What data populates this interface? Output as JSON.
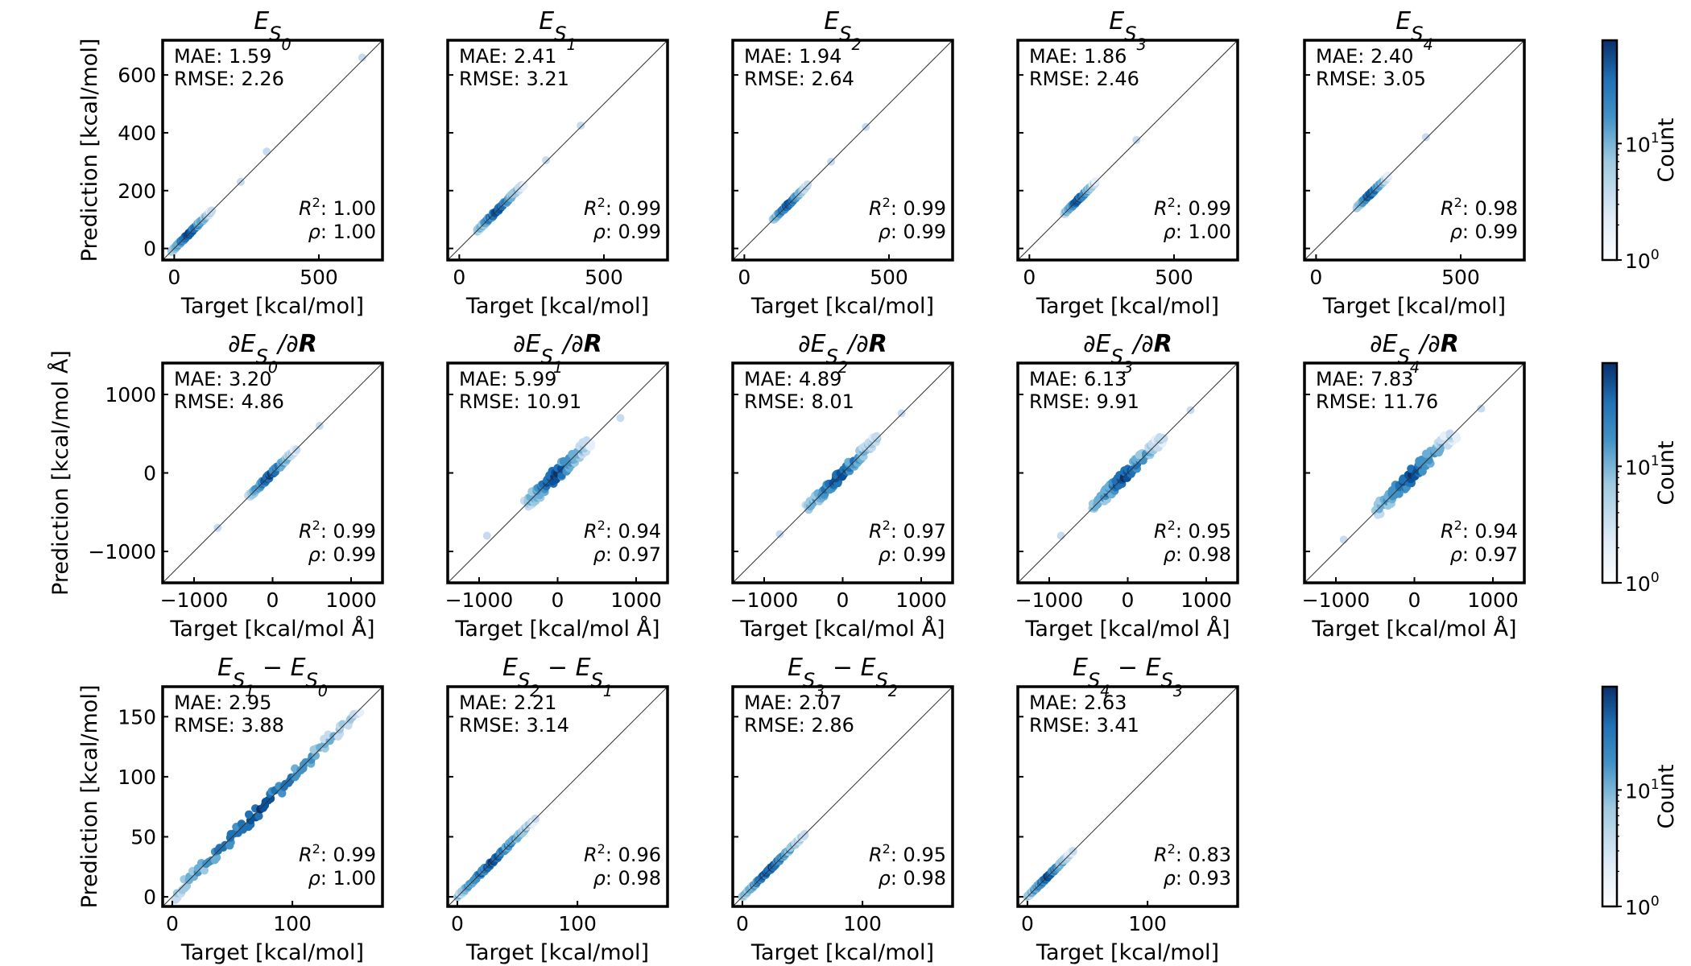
{
  "figure": {
    "colorbar": {
      "label": "Count",
      "scale": "log",
      "ticks": [
        {
          "base": "10",
          "exp": "0"
        },
        {
          "base": "10",
          "exp": "1"
        }
      ],
      "colors": [
        "#ffffff",
        "#deebf7",
        "#9ecae1",
        "#4292c6",
        "#2171b5",
        "#08306b"
      ]
    },
    "hex_color_low": "#deebf7",
    "hex_color_high": "#08306b"
  },
  "chart_data": [
    {
      "type": "hexbin",
      "title_html": "E<sub>S<sub>0</sub></sub>",
      "xlabel": "Target [kcal/mol]",
      "ylabel": "Prediction [kcal/mol]",
      "xlim": [
        -40,
        720
      ],
      "ylim": [
        -40,
        720
      ],
      "xticks": [
        "0",
        "500"
      ],
      "yticks": [
        "0",
        "200",
        "400",
        "600"
      ],
      "mae": "1.59",
      "rmse": "2.26",
      "r2": "1.00",
      "rho": "1.00",
      "range": [
        -10,
        130
      ],
      "spread": 0.04,
      "outliers": [
        [
          230,
          230
        ],
        [
          320,
          335
        ],
        [
          650,
          660
        ]
      ]
    },
    {
      "type": "hexbin",
      "title_html": "E<sub>S<sub>1</sub></sub>",
      "xlabel": "Target [kcal/mol]",
      "ylabel": "",
      "xlim": [
        -40,
        720
      ],
      "ylim": [
        -40,
        720
      ],
      "xticks": [
        "0",
        "500"
      ],
      "yticks": [
        "0",
        "200",
        "400",
        "600"
      ],
      "mae": "2.41",
      "rmse": "3.21",
      "r2": "0.99",
      "rho": "0.99",
      "range": [
        60,
        220
      ],
      "spread": 0.04,
      "outliers": [
        [
          300,
          305
        ],
        [
          420,
          425
        ]
      ]
    },
    {
      "type": "hexbin",
      "title_html": "E<sub>S<sub>2</sub></sub>",
      "xlabel": "Target [kcal/mol]",
      "ylabel": "",
      "xlim": [
        -40,
        720
      ],
      "ylim": [
        -40,
        720
      ],
      "xticks": [
        "0",
        "500"
      ],
      "yticks": [
        "0",
        "200",
        "400",
        "600"
      ],
      "mae": "1.94",
      "rmse": "2.64",
      "r2": "0.99",
      "rho": "0.99",
      "range": [
        100,
        220
      ],
      "spread": 0.04,
      "outliers": [
        [
          300,
          300
        ],
        [
          420,
          420
        ]
      ]
    },
    {
      "type": "hexbin",
      "title_html": "E<sub>S<sub>3</sub></sub>",
      "xlabel": "Target [kcal/mol]",
      "ylabel": "",
      "xlim": [
        -40,
        720
      ],
      "ylim": [
        -40,
        720
      ],
      "xticks": [
        "0",
        "500"
      ],
      "yticks": [
        "0",
        "200",
        "400",
        "600"
      ],
      "mae": "1.86",
      "rmse": "2.46",
      "r2": "0.99",
      "rho": "1.00",
      "range": [
        120,
        230
      ],
      "spread": 0.04,
      "outliers": [
        [
          370,
          375
        ]
      ]
    },
    {
      "type": "hexbin",
      "title_html": "E<sub>S<sub>4</sub></sub>",
      "xlabel": "Target [kcal/mol]",
      "ylabel": "",
      "xlim": [
        -40,
        720
      ],
      "ylim": [
        -40,
        720
      ],
      "xticks": [
        "0",
        "500"
      ],
      "yticks": [
        "0",
        "200",
        "400",
        "600"
      ],
      "mae": "2.40",
      "rmse": "3.05",
      "r2": "0.98",
      "rho": "0.99",
      "range": [
        140,
        250
      ],
      "spread": 0.04,
      "outliers": [
        [
          380,
          385
        ]
      ]
    },
    {
      "type": "hexbin",
      "title_html": "∂E<sub>S<sub>0</sub></sub>/∂<tspan font-weight=\"bold\">R</tspan>",
      "xlabel": "Target [kcal/mol Å]",
      "ylabel": "Prediction [kcal/mol Å]",
      "xlim": [
        -1400,
        1400
      ],
      "ylim": [
        -1400,
        1400
      ],
      "xticks": [
        "−1000",
        "0",
        "1000"
      ],
      "yticks": [
        "−1000",
        "0",
        "1000"
      ],
      "mae": "3.20",
      "rmse": "4.86",
      "r2": "0.99",
      "rho": "0.99",
      "range": [
        -300,
        300
      ],
      "spread": 0.05,
      "outliers": [
        [
          -700,
          -700
        ],
        [
          600,
          600
        ]
      ]
    },
    {
      "type": "hexbin",
      "title_html": "∂E<sub>S<sub>1</sub></sub>/∂<tspan font-weight=\"bold\">R</tspan>",
      "xlabel": "Target [kcal/mol Å]",
      "ylabel": "",
      "xlim": [
        -1400,
        1400
      ],
      "ylim": [
        -1400,
        1400
      ],
      "xticks": [
        "−1000",
        "0",
        "1000"
      ],
      "yticks": [
        "−1000",
        "0",
        "1000"
      ],
      "mae": "5.99",
      "rmse": "10.91",
      "r2": "0.94",
      "rho": "0.97",
      "range": [
        -400,
        400
      ],
      "spread": 0.12,
      "outliers": [
        [
          -900,
          -800
        ],
        [
          800,
          700
        ]
      ]
    },
    {
      "type": "hexbin",
      "title_html": "∂E<sub>S<sub>2</sub></sub>/∂<tspan font-weight=\"bold\">R</tspan>",
      "xlabel": "Target [kcal/mol Å]",
      "ylabel": "",
      "xlim": [
        -1400,
        1400
      ],
      "ylim": [
        -1400,
        1400
      ],
      "xticks": [
        "−1000",
        "0",
        "1000"
      ],
      "yticks": [
        "−1000",
        "0",
        "1000"
      ],
      "mae": "4.89",
      "rmse": "8.01",
      "r2": "0.97",
      "rho": "0.99",
      "range": [
        -450,
        450
      ],
      "spread": 0.08,
      "outliers": [
        [
          -800,
          -780
        ],
        [
          750,
          760
        ]
      ]
    },
    {
      "type": "hexbin",
      "title_html": "∂E<sub>S<sub>3</sub></sub>/∂<tspan font-weight=\"bold\">R</tspan>",
      "xlabel": "Target [kcal/mol Å]",
      "ylabel": "",
      "xlim": [
        -1400,
        1400
      ],
      "ylim": [
        -1400,
        1400
      ],
      "xticks": [
        "−1000",
        "0",
        "1000"
      ],
      "yticks": [
        "−1000",
        "0",
        "1000"
      ],
      "mae": "6.13",
      "rmse": "9.91",
      "r2": "0.95",
      "rho": "0.98",
      "range": [
        -450,
        450
      ],
      "spread": 0.09,
      "outliers": [
        [
          -850,
          -800
        ],
        [
          800,
          800
        ]
      ]
    },
    {
      "type": "hexbin",
      "title_html": "∂E<sub>S<sub>4</sub></sub>/∂<tspan font-weight=\"bold\">R</tspan>",
      "xlabel": "Target [kcal/mol Å]",
      "ylabel": "",
      "xlim": [
        -1400,
        1400
      ],
      "ylim": [
        -1400,
        1400
      ],
      "xticks": [
        "−1000",
        "0",
        "1000"
      ],
      "yticks": [
        "−1000",
        "0",
        "1000"
      ],
      "mae": "7.83",
      "rmse": "11.76",
      "r2": "0.94",
      "rho": "0.97",
      "range": [
        -500,
        500
      ],
      "spread": 0.1,
      "outliers": [
        [
          -900,
          -850
        ],
        [
          850,
          820
        ]
      ]
    },
    {
      "type": "hexbin",
      "title_html": "E<sub>S<sub>1</sub></sub> − E<sub>S<sub>0</sub></sub>",
      "xlabel": "Target [kcal/mol]",
      "ylabel": "Prediction [kcal/mol]",
      "xlim": [
        -8,
        175
      ],
      "ylim": [
        -8,
        175
      ],
      "xticks": [
        "0",
        "100"
      ],
      "yticks": [
        "0",
        "50",
        "100",
        "150"
      ],
      "mae": "2.95",
      "rmse": "3.88",
      "r2": "0.99",
      "rho": "1.00",
      "range": [
        0,
        155
      ],
      "spread": 0.035,
      "outliers": []
    },
    {
      "type": "hexbin",
      "title_html": "E<sub>S<sub>2</sub></sub> − E<sub>S<sub>1</sub></sub>",
      "xlabel": "Target [kcal/mol]",
      "ylabel": "",
      "xlim": [
        -8,
        175
      ],
      "ylim": [
        -8,
        175
      ],
      "xticks": [
        "0",
        "100"
      ],
      "yticks": [
        "0",
        "50",
        "100",
        "150"
      ],
      "mae": "2.21",
      "rmse": "3.14",
      "r2": "0.96",
      "rho": "0.98",
      "range": [
        0,
        65
      ],
      "spread": 0.025,
      "outliers": []
    },
    {
      "type": "hexbin",
      "title_html": "E<sub>S<sub>3</sub></sub> − E<sub>S<sub>2</sub></sub>",
      "xlabel": "Target [kcal/mol]",
      "ylabel": "",
      "xlim": [
        -8,
        175
      ],
      "ylim": [
        -8,
        175
      ],
      "xticks": [
        "0",
        "100"
      ],
      "yticks": [
        "0",
        "50",
        "100",
        "150"
      ],
      "mae": "2.07",
      "rmse": "2.86",
      "r2": "0.95",
      "rho": "0.98",
      "range": [
        0,
        52
      ],
      "spread": 0.022,
      "outliers": []
    },
    {
      "type": "hexbin",
      "title_html": "E<sub>S<sub>4</sub></sub> − E<sub>S<sub>3</sub></sub>",
      "xlabel": "Target [kcal/mol]",
      "ylabel": "",
      "xlim": [
        -8,
        175
      ],
      "ylim": [
        -8,
        175
      ],
      "xticks": [
        "0",
        "100"
      ],
      "yticks": [
        "0",
        "50",
        "100",
        "150"
      ],
      "mae": "2.63",
      "rmse": "3.41",
      "r2": "0.83",
      "rho": "0.93",
      "range": [
        0,
        38
      ],
      "spread": 0.03,
      "outliers": []
    }
  ]
}
